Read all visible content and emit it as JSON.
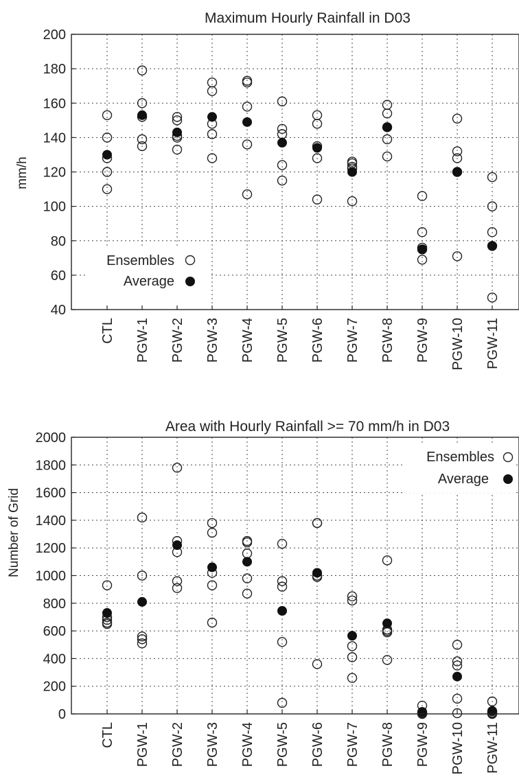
{
  "chart_data": [
    {
      "type": "scatter",
      "title": "Maximum Hourly Rainfall in D03",
      "xlabel": "",
      "ylabel": "mm/h",
      "ylim": [
        40,
        200
      ],
      "yticks": [
        40,
        60,
        80,
        100,
        120,
        140,
        160,
        180,
        200
      ],
      "categories": [
        "CTL",
        "PGW-1",
        "PGW-2",
        "PGW-3",
        "PGW-4",
        "PGW-5",
        "PGW-6",
        "PGW-7",
        "PGW-8",
        "PGW-9",
        "PGW-10",
        "PGW-11"
      ],
      "grid": true,
      "legend": {
        "placement": "bottom-left",
        "entries": [
          "Ensembles",
          "Average"
        ]
      },
      "series": [
        {
          "name": "Ensembles",
          "marker": "open-circle",
          "values": [
            [
              153,
              140,
              128,
              120,
              110
            ],
            [
              179,
              160,
              152,
              139,
              135
            ],
            [
              152,
              150,
              141,
              140,
              133
            ],
            [
              172,
              167,
              148,
              142,
              128
            ],
            [
              173,
              172,
              158,
              136,
              107
            ],
            [
              161,
              145,
              142,
              124,
              115
            ],
            [
              153,
              148,
              135,
              128,
              104
            ],
            [
              126,
              125,
              123,
              122,
              103
            ],
            [
              159,
              154,
              146,
              139,
              129
            ],
            [
              106,
              85,
              76,
              75,
              69
            ],
            [
              151,
              132,
              128,
              120,
              71
            ],
            [
              117,
              100,
              85,
              77,
              47
            ]
          ]
        },
        {
          "name": "Average",
          "marker": "filled-circle",
          "values": [
            130,
            153,
            143,
            152,
            149,
            137,
            134,
            120,
            146,
            75,
            120,
            77
          ]
        }
      ]
    },
    {
      "type": "scatter",
      "title": "Area with Hourly Rainfall >= 70 mm/h in D03",
      "xlabel": "",
      "ylabel": "Number of Grid",
      "ylim": [
        0,
        2000
      ],
      "yticks": [
        0,
        200,
        400,
        600,
        800,
        1000,
        1200,
        1400,
        1600,
        1800,
        2000
      ],
      "categories": [
        "CTL",
        "PGW-1",
        "PGW-2",
        "PGW-3",
        "PGW-4",
        "PGW-5",
        "PGW-6",
        "PGW-7",
        "PGW-8",
        "PGW-9",
        "PGW-10",
        "PGW-11"
      ],
      "grid": true,
      "legend": {
        "placement": "top-right",
        "entries": [
          "Ensembles",
          "Average"
        ]
      },
      "series": [
        {
          "name": "Ensembles",
          "marker": "open-circle",
          "values": [
            [
              930,
              700,
              680,
              660,
              650
            ],
            [
              1420,
              1000,
              560,
              540,
              510
            ],
            [
              1780,
              1250,
              1170,
              960,
              910
            ],
            [
              1380,
              1310,
              1020,
              930,
              660
            ],
            [
              1250,
              1240,
              1160,
              980,
              870
            ],
            [
              1230,
              960,
              920,
              520,
              80
            ],
            [
              1380,
              1380,
              1000,
              990,
              360
            ],
            [
              850,
              820,
              490,
              410,
              260
            ],
            [
              1110,
              610,
              600,
              590,
              390
            ],
            [
              60,
              10,
              5,
              2,
              0
            ],
            [
              500,
              380,
              350,
              110,
              5
            ],
            [
              90,
              20,
              10,
              5,
              0
            ]
          ]
        },
        {
          "name": "Average",
          "marker": "filled-circle",
          "values": [
            730,
            810,
            1220,
            1060,
            1100,
            745,
            1020,
            565,
            655,
            15,
            270,
            20
          ]
        }
      ]
    }
  ]
}
